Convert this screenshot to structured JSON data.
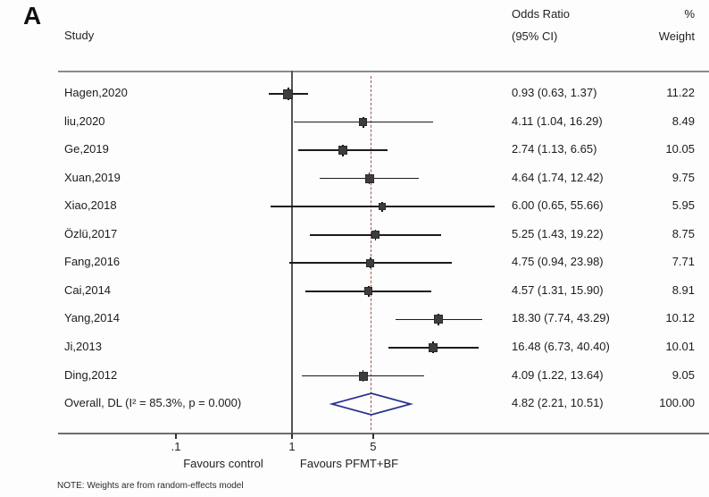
{
  "panel_label": "A",
  "header": {
    "study": "Study",
    "or_line1": "Odds Ratio",
    "or_line2": "(95% CI)",
    "weight_line1": "%",
    "weight_line2": "Weight"
  },
  "colors": {
    "ci_line": "#1b1b1b",
    "marker": "#3d3d3d",
    "null_line": "#555555",
    "dashed_line": "#a35252",
    "diamond": "#27308f",
    "rule": "#8b8b8b"
  },
  "chart_data": {
    "type": "forest",
    "x_scale": "log10",
    "title": "",
    "xlabel_ticks": [
      {
        "value": 0.1,
        "label": ".1"
      },
      {
        "value": 1,
        "label": "1"
      },
      {
        "value": 5,
        "label": "5"
      }
    ],
    "null_line_value": 1,
    "dashed_line_value": 4.82,
    "studies": [
      {
        "label": "Hagen,2020",
        "or": 0.93,
        "lo": 0.63,
        "hi": 1.37,
        "ci_text": "0.93 (0.63, 1.37)",
        "weight": "11.22"
      },
      {
        "label": "liu,2020",
        "or": 4.11,
        "lo": 1.04,
        "hi": 16.29,
        "ci_text": "4.11 (1.04, 16.29)",
        "weight": "8.49"
      },
      {
        "label": "Ge,2019",
        "or": 2.74,
        "lo": 1.13,
        "hi": 6.65,
        "ci_text": "2.74 (1.13, 6.65)",
        "weight": "10.05"
      },
      {
        "label": "Xuan,2019",
        "or": 4.64,
        "lo": 1.74,
        "hi": 12.42,
        "ci_text": "4.64 (1.74, 12.42)",
        "weight": "9.75"
      },
      {
        "label": "Xiao,2018",
        "or": 6.0,
        "lo": 0.65,
        "hi": 55.66,
        "ci_text": "6.00 (0.65, 55.66)",
        "weight": "5.95"
      },
      {
        "label": "Özlü,2017",
        "or": 5.25,
        "lo": 1.43,
        "hi": 19.22,
        "ci_text": "5.25 (1.43, 19.22)",
        "weight": "8.75"
      },
      {
        "label": "Fang,2016",
        "or": 4.75,
        "lo": 0.94,
        "hi": 23.98,
        "ci_text": "4.75 (0.94, 23.98)",
        "weight": "7.71"
      },
      {
        "label": "Cai,2014",
        "or": 4.57,
        "lo": 1.31,
        "hi": 15.9,
        "ci_text": "4.57 (1.31, 15.90)",
        "weight": "8.91"
      },
      {
        "label": "Yang,2014",
        "or": 18.3,
        "lo": 7.74,
        "hi": 43.29,
        "ci_text": "18.30 (7.74, 43.29)",
        "weight": "10.12"
      },
      {
        "label": "Ji,2013",
        "or": 16.48,
        "lo": 6.73,
        "hi": 40.4,
        "ci_text": "16.48 (6.73, 40.40)",
        "weight": "10.01"
      },
      {
        "label": "Ding,2012",
        "or": 4.09,
        "lo": 1.22,
        "hi": 13.64,
        "ci_text": "4.09 (1.22, 13.64)",
        "weight": "9.05"
      }
    ],
    "overall": {
      "label": "Overall, DL (I² = 85.3%, p = 0.000)",
      "or": 4.82,
      "lo": 2.21,
      "hi": 10.51,
      "ci_text": "4.82 (2.21, 10.51)",
      "weight": "100.00"
    },
    "axis_region_labels": {
      "left": "Favours control",
      "right": "Favours PFMT+BF"
    },
    "note": "NOTE: Weights are from random-effects model",
    "legend_position": "none",
    "grid": false
  }
}
